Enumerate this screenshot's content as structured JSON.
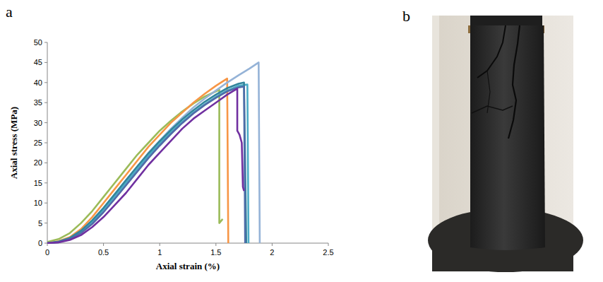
{
  "chart_data": {
    "type": "line",
    "panel_label": "a",
    "x_label": "Axial strain (%)",
    "y_label": "Axial stress (MPa)",
    "xlim": [
      0,
      2.5
    ],
    "xticks": [
      0,
      0.5,
      1,
      1.5,
      2,
      2.5
    ],
    "ylim": [
      0,
      50
    ],
    "yticks": [
      0,
      5,
      10,
      15,
      20,
      25,
      30,
      35,
      40,
      45,
      50
    ],
    "grid": false,
    "series": [
      {
        "color": "#9bbb59",
        "x": [
          0,
          0.1,
          0.2,
          0.3,
          0.4,
          0.5,
          0.6,
          0.7,
          0.8,
          0.9,
          1.0,
          1.1,
          1.2,
          1.3,
          1.4,
          1.5,
          1.53,
          1.53,
          1.56
        ],
        "values": [
          0.3,
          1,
          2.5,
          5,
          8,
          11.5,
          15,
          18.5,
          22,
          25,
          28,
          30.5,
          32.8,
          34.8,
          36.5,
          37.8,
          38.2,
          5,
          6
        ]
      },
      {
        "color": "#f79646",
        "x": [
          0,
          0.1,
          0.2,
          0.3,
          0.4,
          0.5,
          0.6,
          0.7,
          0.8,
          0.9,
          1.0,
          1.1,
          1.2,
          1.3,
          1.4,
          1.5,
          1.6,
          1.61
        ],
        "values": [
          0,
          0.5,
          1.5,
          3.5,
          6.5,
          10,
          13.5,
          17,
          20.5,
          24,
          27,
          30,
          32.5,
          35,
          37.2,
          39.2,
          41,
          0
        ]
      },
      {
        "color": "#95b3d7",
        "x": [
          0,
          0.1,
          0.2,
          0.3,
          0.4,
          0.5,
          0.6,
          0.7,
          0.8,
          0.9,
          1.0,
          1.1,
          1.2,
          1.3,
          1.4,
          1.5,
          1.6,
          1.7,
          1.8,
          1.88,
          1.89
        ],
        "values": [
          0,
          0.3,
          1.2,
          3,
          5.5,
          8.5,
          12,
          15.5,
          19,
          22.5,
          25.5,
          28.5,
          31.2,
          33.8,
          36,
          38,
          40,
          41.8,
          43.5,
          45,
          0
        ]
      },
      {
        "color": "#4bacc6",
        "x": [
          0,
          0.1,
          0.2,
          0.3,
          0.4,
          0.5,
          0.6,
          0.7,
          0.8,
          0.9,
          1.0,
          1.1,
          1.2,
          1.3,
          1.4,
          1.5,
          1.6,
          1.7,
          1.78,
          1.79
        ],
        "values": [
          0,
          0.3,
          1,
          2.8,
          5.3,
          8.3,
          11.6,
          15,
          18.4,
          21.8,
          24.8,
          27.6,
          30.2,
          32.5,
          34.6,
          36.4,
          38,
          39.2,
          39.5,
          0
        ]
      },
      {
        "color": "#31859c",
        "x": [
          0,
          0.1,
          0.2,
          0.3,
          0.4,
          0.5,
          0.6,
          0.7,
          0.8,
          0.9,
          1.0,
          1.1,
          1.2,
          1.3,
          1.4,
          1.5,
          1.6,
          1.7,
          1.75,
          1.77
        ],
        "values": [
          0,
          0.4,
          1.3,
          3.1,
          5.7,
          8.8,
          12.2,
          15.7,
          19.1,
          22.4,
          25.4,
          28.2,
          30.8,
          33.1,
          35.2,
          37,
          38.6,
          39.7,
          40,
          0
        ]
      },
      {
        "color": "#4f6ca8",
        "x": [
          0,
          0.1,
          0.2,
          0.3,
          0.4,
          0.5,
          0.6,
          0.7,
          0.8,
          0.9,
          1.0,
          1.1,
          1.2,
          1.3,
          1.4,
          1.5,
          1.6,
          1.7,
          1.75,
          1.76
        ],
        "values": [
          0,
          0.2,
          1,
          2.5,
          4.8,
          7.7,
          11,
          14.4,
          17.8,
          21.2,
          24.3,
          27.2,
          29.9,
          32.3,
          34.4,
          36.2,
          37.8,
          38.8,
          39,
          0
        ]
      },
      {
        "color": "#7030a0",
        "x": [
          0,
          0.1,
          0.2,
          0.3,
          0.4,
          0.5,
          0.6,
          0.7,
          0.8,
          0.9,
          1.0,
          1.1,
          1.2,
          1.3,
          1.4,
          1.5,
          1.6,
          1.69,
          1.69,
          1.71,
          1.73,
          1.74,
          1.75
        ],
        "values": [
          0,
          0.2,
          0.8,
          2,
          4,
          6.5,
          9.5,
          12.5,
          16,
          19.5,
          22.5,
          25.5,
          28.5,
          31,
          33,
          35,
          37,
          38.5,
          28,
          27,
          25,
          14,
          13
        ]
      }
    ]
  },
  "photo": {
    "panel_label": "b"
  }
}
